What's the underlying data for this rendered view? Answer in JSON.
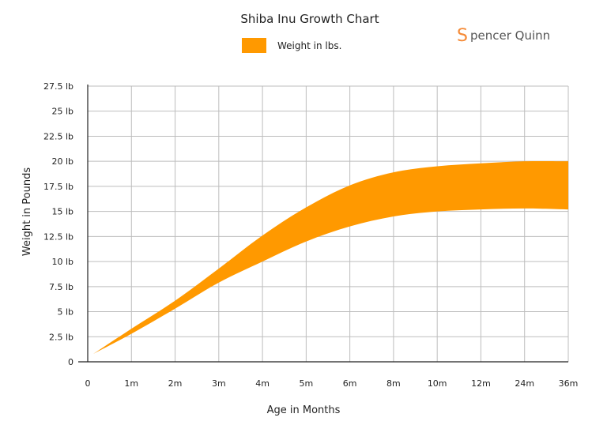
{
  "colors": {
    "band": "#FF9900",
    "brand": "#F58A36"
  },
  "brand": {
    "initial": "S",
    "text": "pencer Quinn"
  },
  "chart_data": {
    "type": "area",
    "title": "Shiba Inu Growth Chart",
    "xlabel": "Age in Months",
    "ylabel": "Weight in Pounds",
    "categories": [
      "0",
      "1m",
      "2m",
      "3m",
      "4m",
      "5m",
      "6m",
      "8m",
      "10m",
      "12m",
      "24m",
      "36m"
    ],
    "y_tick_labels": [
      "0",
      "2.5 lb",
      "5 lb",
      "7.5 lb",
      "10 lb",
      "12.5 lb",
      "15 lb",
      "17.5 lb",
      "20 lb",
      "22.5 lb",
      "25 lb",
      "27.5 lb"
    ],
    "ylim": [
      0,
      27.5
    ],
    "grid": true,
    "legend": {
      "position": "top",
      "entries": [
        "Weight in lbs."
      ]
    },
    "series": [
      {
        "name": "Weight in lbs.",
        "x_start": "0",
        "start_value": 0.8,
        "low": [
          null,
          2.8,
          5.3,
          7.9,
          10.0,
          12.0,
          13.5,
          14.5,
          15.0,
          15.2,
          15.3,
          15.2
        ],
        "high": [
          null,
          3.3,
          6.1,
          9.3,
          12.6,
          15.4,
          17.6,
          18.9,
          19.5,
          19.8,
          20.0,
          20.0
        ]
      }
    ]
  }
}
